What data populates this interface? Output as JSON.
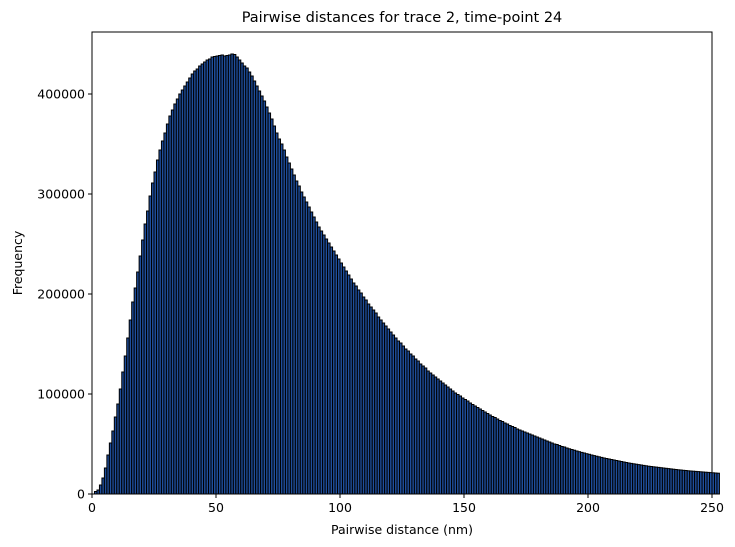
{
  "chart_data": {
    "type": "bar",
    "title": "Pairwise distances for trace 2, time-point 24",
    "xlabel": "Pairwise distance (nm)",
    "ylabel": "Frequency",
    "xlim": [
      0,
      250
    ],
    "ylim": [
      0,
      462000
    ],
    "xticks": [
      "0",
      "50",
      "100",
      "150",
      "200",
      "250"
    ],
    "xtick_values": [
      0,
      50,
      100,
      150,
      200,
      250
    ],
    "yticks": [
      "0",
      "100000",
      "200000",
      "300000",
      "400000"
    ],
    "ytick_values": [
      0,
      100000,
      200000,
      300000,
      400000
    ],
    "grid": false,
    "bar_color": "#1f4e9c",
    "edge_color": "#000000",
    "bin_width": 1,
    "bin_start": 0,
    "values": [
      0,
      2500,
      4000,
      9000,
      16000,
      26000,
      39000,
      51000,
      63000,
      77000,
      90000,
      105000,
      122000,
      138000,
      156000,
      174000,
      192000,
      206000,
      222000,
      238000,
      254000,
      270000,
      283000,
      298000,
      311000,
      322000,
      334000,
      344000,
      353000,
      361000,
      370000,
      378000,
      384000,
      390000,
      395000,
      400000,
      404000,
      408000,
      412000,
      416000,
      420000,
      423000,
      425000,
      428000,
      430000,
      432000,
      434000,
      435000,
      437000,
      437500,
      438000,
      438500,
      439000,
      438000,
      438500,
      439000,
      440000,
      439500,
      437000,
      434000,
      431000,
      428000,
      426000,
      422000,
      418000,
      413000,
      408000,
      403000,
      398000,
      393000,
      387000,
      381000,
      375000,
      368000,
      361000,
      355000,
      350000,
      344000,
      337000,
      331000,
      325000,
      319000,
      313000,
      308000,
      302000,
      297000,
      292000,
      287000,
      282000,
      277000,
      272000,
      267000,
      263000,
      259000,
      255000,
      251000,
      247000,
      243000,
      239000,
      235000,
      231000,
      227000,
      223000,
      219000,
      215000,
      211000,
      208000,
      204000,
      201000,
      197000,
      194000,
      190000,
      187000,
      184000,
      181000,
      177000,
      174000,
      171000,
      168000,
      165000,
      162000,
      159000,
      156000,
      153000,
      151000,
      148000,
      145000,
      143000,
      140000,
      138000,
      135000,
      133000,
      130000,
      128000,
      126000,
      123000,
      121000,
      119000,
      117000,
      115000,
      113000,
      111000,
      109000,
      107000,
      105000,
      103000,
      101000,
      99500,
      98000,
      96000,
      94500,
      93000,
      91000,
      89500,
      88000,
      86500,
      85000,
      83500,
      82000,
      80500,
      79000,
      77500,
      76500,
      75000,
      73500,
      72500,
      71000,
      70000,
      68500,
      67500,
      66500,
      65000,
      64000,
      63000,
      62000,
      61000,
      60000,
      59000,
      58000,
      57000,
      56000,
      55000,
      54000,
      53000,
      52000,
      51000,
      50000,
      49500,
      48500,
      47500,
      47000,
      46000,
      45200,
      44500,
      43800,
      43000,
      42300,
      41600,
      41000,
      40300,
      39700,
      39000,
      38400,
      37800,
      37200,
      36600,
      36000,
      35500,
      35000,
      34500,
      34000,
      33500,
      33000,
      32500,
      32000,
      31500,
      31000,
      30600,
      30200,
      29800,
      29400,
      29000,
      28600,
      28200,
      27800,
      27500,
      27200,
      26900,
      26600,
      26300,
      26000,
      25700,
      25400,
      25100,
      24800,
      24500,
      24200,
      24000,
      23700,
      23500,
      23200,
      23000,
      22800,
      22600,
      22400,
      22200,
      22000,
      21800,
      21600,
      21400,
      21200,
      21000,
      20800
    ]
  }
}
